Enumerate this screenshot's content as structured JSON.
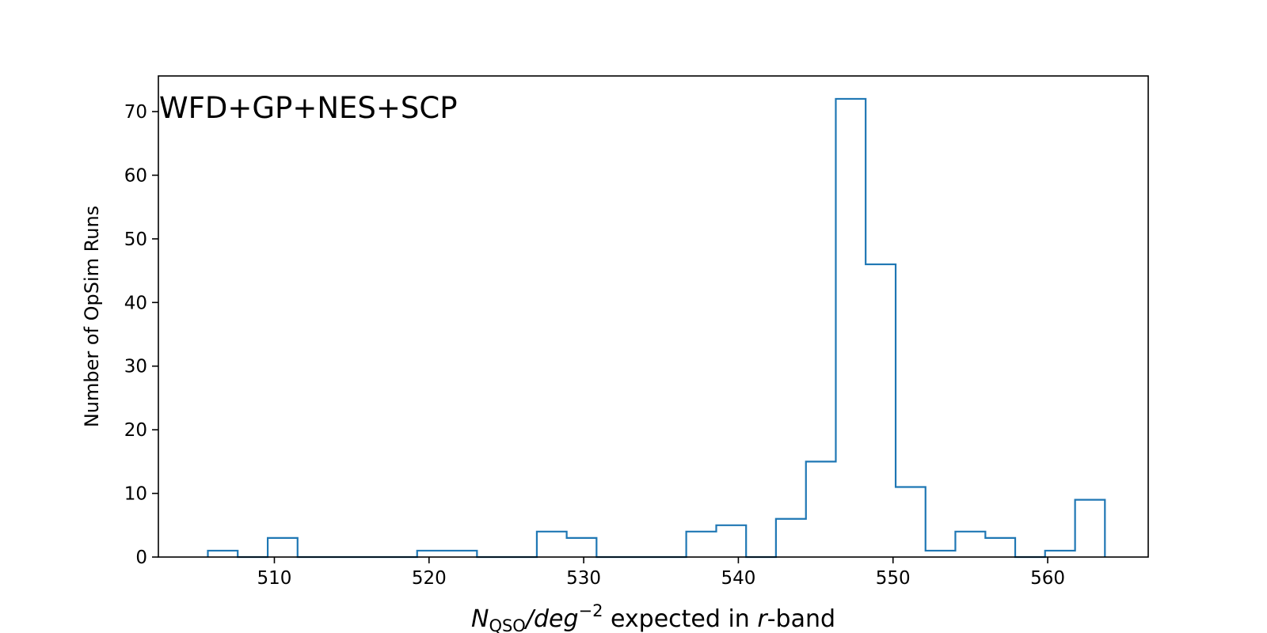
{
  "chart_data": {
    "type": "bar",
    "subtype": "step-histogram",
    "annotation": "WFD+GP+NES+SCP",
    "xlabel": {
      "main": "N",
      "subscript": "QSO",
      "slash": "/",
      "unit": "deg",
      "superscript": "−2",
      "middle": " expected in ",
      "band": "r",
      "suffix": "-band"
    },
    "ylabel": "Number of OpSim Runs",
    "xlim": [
      502.5,
      566.5
    ],
    "ylim": [
      0,
      75.6
    ],
    "x_ticks": [
      510,
      520,
      530,
      540,
      550,
      560
    ],
    "y_ticks": [
      0,
      10,
      20,
      30,
      40,
      50,
      60,
      70
    ],
    "grid": false,
    "line_color": "#1f77b4",
    "bin_edges": [
      505.7,
      507.63,
      509.57,
      511.5,
      513.43,
      515.37,
      517.3,
      519.23,
      521.17,
      523.1,
      525.03,
      526.97,
      528.9,
      530.83,
      532.77,
      534.7,
      536.63,
      538.57,
      540.5,
      542.43,
      544.37,
      546.3,
      548.23,
      550.17,
      552.1,
      554.03,
      555.97,
      557.9,
      559.83,
      561.77,
      563.7
    ],
    "counts": [
      1,
      0,
      3,
      0,
      0,
      0,
      0,
      1,
      1,
      0,
      0,
      4,
      3,
      0,
      0,
      0,
      4,
      5,
      0,
      6,
      15,
      72,
      46,
      11,
      1,
      4,
      3,
      0,
      1,
      9
    ]
  }
}
